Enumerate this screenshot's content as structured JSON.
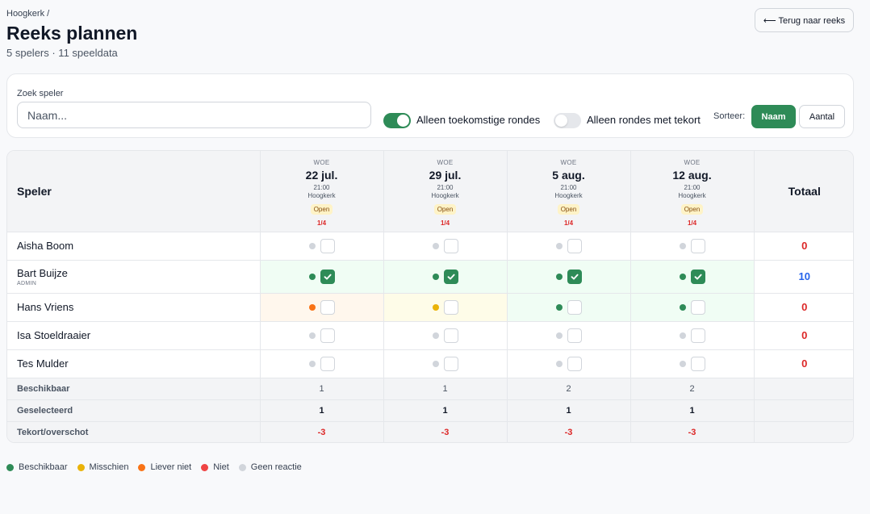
{
  "header": {
    "breadcrumb": "Hoogkerk /",
    "title": "Reeks plannen",
    "subtitle": "5 spelers · 11 speeldata",
    "back_label": "⟵ Terug naar reeks"
  },
  "filters": {
    "search_label": "Zoek speler",
    "search_placeholder": "Naam...",
    "search_value": "",
    "toggle_future_label": "Alleen toekomstige rondes",
    "toggle_future_on": true,
    "toggle_shortage_label": "Alleen rondes met tekort",
    "toggle_shortage_on": false,
    "sort_label": "Sorteer:",
    "sort_options": [
      "Naam",
      "Aantal"
    ],
    "sort_selected": "Naam"
  },
  "colors": {
    "accent": "#2e8b57",
    "available": "#2e8b57",
    "maybe": "#eab308",
    "rather_not": "#f97316",
    "not": "#ef4444",
    "no_response": "#d1d5db",
    "danger": "#dc2626",
    "info": "#2563eb",
    "bg_available": "#f0fdf4",
    "bg_maybe": "#fefce8",
    "bg_rather_not": "#fff7ed"
  },
  "grid": {
    "player_col_label": "Speler",
    "total_col_label": "Totaal",
    "rounds": [
      {
        "weekday": "WOE",
        "date": "22 jul.",
        "time": "21:00",
        "location": "Hoogkerk",
        "status": "Open",
        "count": "1/4"
      },
      {
        "weekday": "WOE",
        "date": "29 jul.",
        "time": "21:00",
        "location": "Hoogkerk",
        "status": "Open",
        "count": "1/4"
      },
      {
        "weekday": "WOE",
        "date": "5 aug.",
        "time": "21:00",
        "location": "Hoogkerk",
        "status": "Open",
        "count": "1/4"
      },
      {
        "weekday": "WOE",
        "date": "12 aug.",
        "time": "21:00",
        "location": "Hoogkerk",
        "status": "Open",
        "count": "1/4"
      }
    ],
    "players": [
      {
        "name": "Aisha Boom",
        "role": "",
        "total": "0",
        "total_color": "danger",
        "slots": [
          {
            "status": "no_response",
            "selected": false
          },
          {
            "status": "no_response",
            "selected": false
          },
          {
            "status": "no_response",
            "selected": false
          },
          {
            "status": "no_response",
            "selected": false
          }
        ]
      },
      {
        "name": "Bart Buijze",
        "role": "ADMIN",
        "total": "10",
        "total_color": "info",
        "slots": [
          {
            "status": "available",
            "selected": true
          },
          {
            "status": "available",
            "selected": true
          },
          {
            "status": "available",
            "selected": true
          },
          {
            "status": "available",
            "selected": true
          }
        ]
      },
      {
        "name": "Hans Vriens",
        "role": "",
        "total": "0",
        "total_color": "danger",
        "slots": [
          {
            "status": "rather_not",
            "selected": false
          },
          {
            "status": "maybe",
            "selected": false
          },
          {
            "status": "available",
            "selected": false
          },
          {
            "status": "available",
            "selected": false
          }
        ]
      },
      {
        "name": "Isa Stoeldraaier",
        "role": "",
        "total": "0",
        "total_color": "danger",
        "slots": [
          {
            "status": "no_response",
            "selected": false
          },
          {
            "status": "no_response",
            "selected": false
          },
          {
            "status": "no_response",
            "selected": false
          },
          {
            "status": "no_response",
            "selected": false
          }
        ]
      },
      {
        "name": "Tes Mulder",
        "role": "",
        "total": "0",
        "total_color": "danger",
        "slots": [
          {
            "status": "no_response",
            "selected": false
          },
          {
            "status": "no_response",
            "selected": false
          },
          {
            "status": "no_response",
            "selected": false
          },
          {
            "status": "no_response",
            "selected": false
          }
        ]
      }
    ],
    "summary": [
      {
        "key": "avail",
        "label": "Beschikbaar",
        "values": [
          "1",
          "1",
          "2",
          "2"
        ]
      },
      {
        "key": "sel",
        "label": "Geselecteerd",
        "values": [
          "1",
          "1",
          "1",
          "1"
        ]
      },
      {
        "key": "short",
        "label": "Tekort/overschot",
        "values": [
          "-3",
          "-3",
          "-3",
          "-3"
        ]
      }
    ]
  },
  "legend": [
    {
      "status": "available",
      "label": "Beschikbaar"
    },
    {
      "status": "maybe",
      "label": "Misschien"
    },
    {
      "status": "rather_not",
      "label": "Liever niet"
    },
    {
      "status": "not",
      "label": "Niet"
    },
    {
      "status": "no_response",
      "label": "Geen reactie"
    }
  ]
}
